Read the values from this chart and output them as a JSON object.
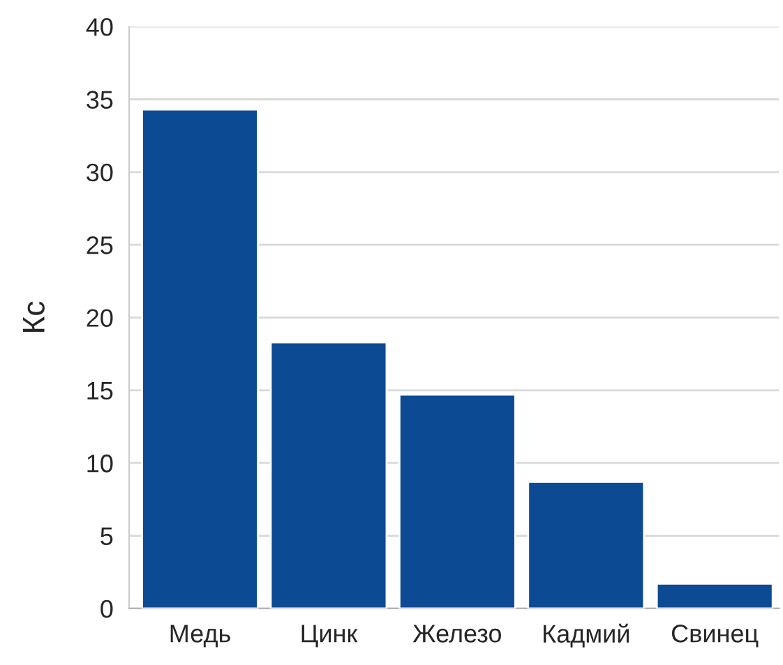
{
  "chart_data": {
    "type": "bar",
    "ylabel": "Кс",
    "categories": [
      "Медь",
      "Цинк",
      "Железо",
      "Кадмий",
      "Свинец"
    ],
    "values": [
      34.3,
      18.3,
      14.7,
      8.7,
      1.7
    ],
    "color": "#0d4a94",
    "ylim": [
      0,
      40
    ],
    "yticks": [
      0,
      5,
      10,
      15,
      20,
      25,
      30,
      35,
      40
    ],
    "grid": "y",
    "legend": false
  }
}
